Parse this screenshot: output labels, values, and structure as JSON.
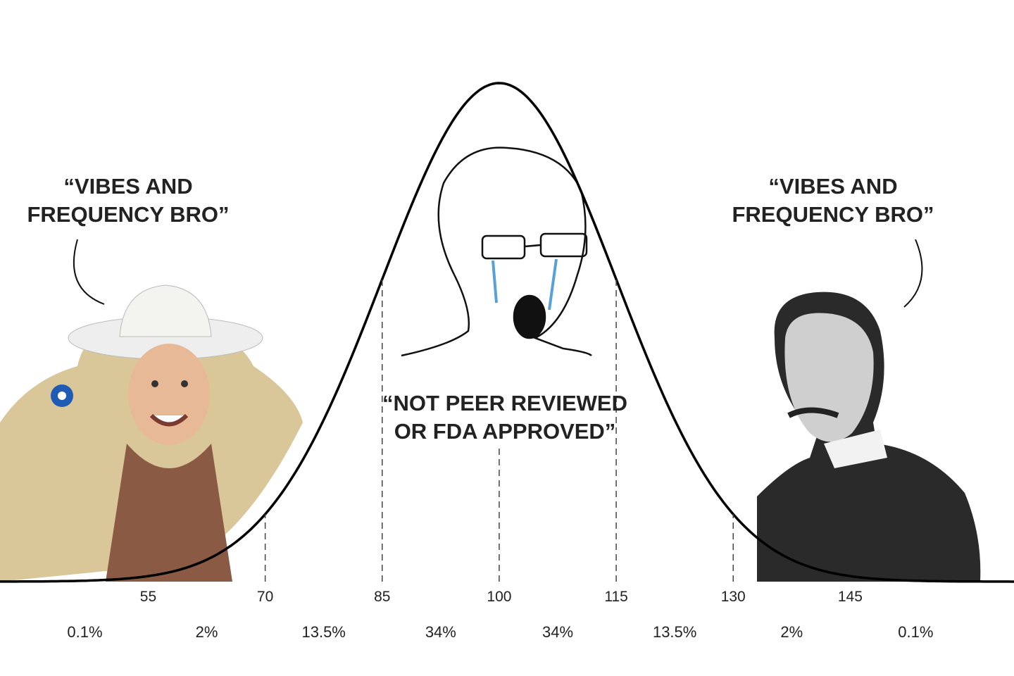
{
  "chart_data": {
    "type": "bell",
    "xlim": [
      36,
      166
    ],
    "xticks": [
      55,
      70,
      85,
      100,
      115,
      130,
      145
    ],
    "values": [
      0.1,
      2,
      13.5,
      34,
      34,
      13.5,
      2,
      0.1
    ],
    "value_labels": [
      "0.1%",
      "2%",
      "13.5%",
      "34%",
      "34%",
      "13.5%",
      "2%",
      "0.1%"
    ],
    "color": "#000000",
    "annotations": [
      {
        "lines": [
          "“VIBES AND",
          "FREQUENCY BRO”"
        ]
      },
      {
        "lines": [
          "“NOT PEER REVIEWED",
          "OR FDA APPROVED”"
        ]
      },
      {
        "lines": [
          "“VIBES AND",
          "FREQUENCY BRO”"
        ]
      }
    ]
  }
}
